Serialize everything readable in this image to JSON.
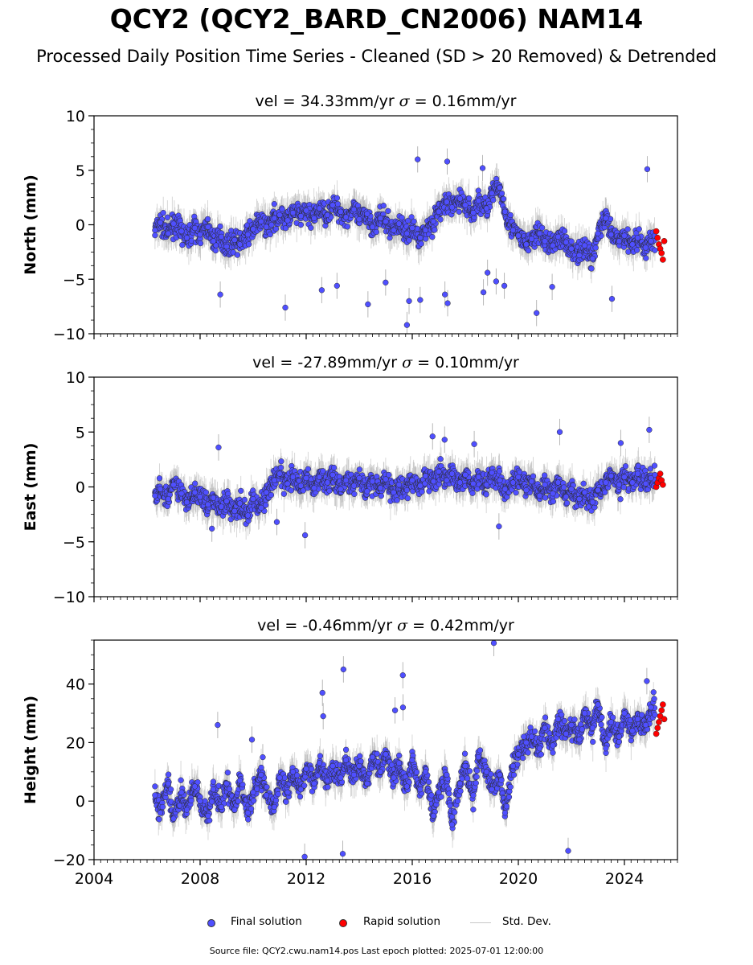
{
  "header": {
    "title": "QCY2 (QCY2_BARD_CN2006) NAM14",
    "subtitle": "Processed Daily Position Time Series - Cleaned (SD > 20 Removed) & Detrended"
  },
  "footer": {
    "text": "Source file: QCY2.cwu.nam14.pos  Last epoch plotted: 2025-07-01 12:00:00"
  },
  "legend": {
    "final_label": "Final solution",
    "rapid_label": "Rapid solution",
    "std_label": "Std. Dev."
  },
  "colors": {
    "final": "#4f4fff",
    "rapid": "#ff0000",
    "std": "#b0b0b0",
    "edge": "#2a2a2a"
  },
  "chart_data": [
    {
      "type": "scatter",
      "title_vel": "vel = 34.33mm/yr",
      "title_sigma": "= 0.16mm/yr",
      "ylabel": "North (mm)",
      "xlim": [
        2004,
        2026
      ],
      "ylim": [
        -10,
        10
      ],
      "yticks": [
        -10,
        -5,
        0,
        5,
        10
      ],
      "xticks": [
        2004,
        2008,
        2012,
        2016,
        2020,
        2024
      ],
      "show_xticklabels": false,
      "series": [
        {
          "name": "Final solution",
          "x": [
            2006.3,
            2006.5,
            2006.8,
            2007.0,
            2007.3,
            2007.5,
            2007.8,
            2008.0,
            2008.3,
            2008.5,
            2008.8,
            2009.0,
            2009.3,
            2009.5,
            2009.8,
            2010.0,
            2010.3,
            2010.5,
            2010.8,
            2011.0,
            2011.3,
            2011.5,
            2011.8,
            2012.0,
            2012.3,
            2012.5,
            2012.8,
            2013.0,
            2013.3,
            2013.5,
            2013.8,
            2014.0,
            2014.3,
            2014.5,
            2014.8,
            2015.0,
            2015.3,
            2015.5,
            2015.8,
            2016.0,
            2016.3,
            2016.5,
            2016.8,
            2017.0,
            2017.3,
            2017.5,
            2017.8,
            2018.0,
            2018.3,
            2018.5,
            2018.8,
            2019.0,
            2019.3,
            2019.5,
            2019.8,
            2020.0,
            2020.3,
            2020.5,
            2020.8,
            2021.0,
            2021.3,
            2021.5,
            2021.8,
            2022.0,
            2022.3,
            2022.5,
            2022.8,
            2023.0,
            2023.3,
            2023.5,
            2023.8,
            2024.0,
            2024.3,
            2024.5,
            2024.8,
            2025.0
          ],
          "y": [
            -0.5,
            0.2,
            -0.8,
            0.1,
            -0.6,
            -1.2,
            -0.3,
            -0.9,
            -0.2,
            -1.5,
            -1.1,
            -2.0,
            -1.4,
            -1.8,
            -0.9,
            -0.4,
            0.3,
            -0.2,
            0.6,
            0.9,
            0.4,
            1.1,
            0.8,
            1.3,
            0.6,
            1.5,
            0.9,
            1.8,
            1.2,
            0.7,
            1.4,
            0.5,
            1.0,
            -0.2,
            0.6,
            0.3,
            -0.5,
            0.1,
            -0.8,
            -0.3,
            -1.2,
            -0.5,
            0.3,
            1.2,
            2.1,
            1.6,
            2.4,
            1.8,
            1.1,
            2.2,
            1.5,
            2.9,
            3.4,
            1.2,
            -0.5,
            -1.0,
            -1.8,
            -1.3,
            -0.8,
            -1.5,
            -1.9,
            -1.1,
            -1.6,
            -2.2,
            -2.8,
            -1.9,
            -3.1,
            -0.8,
            0.6,
            -0.9,
            -1.5,
            -1.0,
            -1.8,
            -1.2,
            -2.1,
            -1.5
          ]
        },
        {
          "name": "Rapid solution",
          "x": [
            2025.2,
            2025.25,
            2025.3,
            2025.35,
            2025.4,
            2025.45,
            2025.5
          ],
          "y": [
            -0.6,
            -1.2,
            -1.8,
            -2.2,
            -2.6,
            -3.2,
            -1.5
          ]
        }
      ],
      "outliers_y": [
        -6.8,
        -7.2,
        -8.1,
        -7.3,
        -6.2,
        -5.2,
        -4.4,
        -7.6,
        -9.2,
        -5.6,
        -6.0,
        -6.4,
        -7.0,
        -6.4,
        -5.3,
        -6.9,
        -5.7,
        -5.6,
        6.0,
        5.8,
        5.2,
        5.1
      ]
    },
    {
      "type": "scatter",
      "title_vel": "vel = -27.89mm/yr",
      "title_sigma": "= 0.10mm/yr",
      "ylabel": "East (mm)",
      "xlim": [
        2004,
        2026
      ],
      "ylim": [
        -10,
        10
      ],
      "yticks": [
        -10,
        -5,
        0,
        5,
        10
      ],
      "xticks": [
        2004,
        2008,
        2012,
        2016,
        2020,
        2024
      ],
      "show_xticklabels": false,
      "series": [
        {
          "name": "Final solution",
          "x": [
            2006.3,
            2006.5,
            2006.8,
            2007.0,
            2007.3,
            2007.5,
            2007.8,
            2008.0,
            2008.3,
            2008.5,
            2008.8,
            2009.0,
            2009.3,
            2009.5,
            2009.8,
            2010.0,
            2010.3,
            2010.5,
            2010.8,
            2011.0,
            2011.3,
            2011.5,
            2011.8,
            2012.0,
            2012.3,
            2012.5,
            2012.8,
            2013.0,
            2013.3,
            2013.5,
            2013.8,
            2014.0,
            2014.3,
            2014.5,
            2014.8,
            2015.0,
            2015.3,
            2015.5,
            2015.8,
            2016.0,
            2016.3,
            2016.5,
            2016.8,
            2017.0,
            2017.3,
            2017.5,
            2017.8,
            2018.0,
            2018.3,
            2018.5,
            2018.8,
            2019.0,
            2019.3,
            2019.5,
            2019.8,
            2020.0,
            2020.3,
            2020.5,
            2020.8,
            2021.0,
            2021.3,
            2021.5,
            2021.8,
            2022.0,
            2022.3,
            2022.5,
            2022.8,
            2023.0,
            2023.3,
            2023.5,
            2023.8,
            2024.0,
            2024.3,
            2024.5,
            2024.8,
            2025.0
          ],
          "y": [
            -0.8,
            -0.2,
            -1.1,
            0.2,
            -0.6,
            -1.4,
            -0.5,
            -0.9,
            -1.6,
            -1.0,
            -1.8,
            -1.3,
            -2.2,
            -1.5,
            -2.6,
            -1.1,
            -1.9,
            -0.5,
            0.6,
            1.2,
            0.3,
            0.9,
            0.1,
            0.8,
            -0.1,
            0.9,
            0.4,
            1.1,
            -0.2,
            0.6,
            0.1,
            0.8,
            -0.4,
            0.5,
            -0.1,
            0.7,
            -0.5,
            0.2,
            -0.3,
            0.6,
            0.1,
            1.0,
            0.5,
            1.4,
            0.6,
            1.2,
            0.4,
            1.1,
            0.3,
            0.9,
            0.2,
            1.3,
            0.6,
            -0.2,
            0.4,
            0.9,
            -0.3,
            0.5,
            -0.8,
            0.2,
            -0.6,
            0.4,
            -0.9,
            -0.2,
            -1.1,
            -0.5,
            -1.4,
            -0.3,
            0.4,
            1.0,
            0.2,
            0.9,
            0.4,
            1.2,
            0.3,
            0.8
          ]
        },
        {
          "name": "Rapid solution",
          "x": [
            2025.2,
            2025.25,
            2025.3,
            2025.35,
            2025.4,
            2025.45
          ],
          "y": [
            0.0,
            0.4,
            0.8,
            1.2,
            0.6,
            0.2
          ]
        }
      ],
      "outliers_y": [
        3.9,
        3.6,
        4.3,
        5.2,
        5.0,
        4.6,
        4.0,
        -3.8,
        -4.4,
        -3.6,
        -3.2
      ]
    },
    {
      "type": "scatter",
      "title_vel": "vel = -0.46mm/yr",
      "title_sigma": "= 0.42mm/yr",
      "ylabel": "Height (mm)",
      "xlim": [
        2004,
        2026
      ],
      "ylim": [
        -20,
        55
      ],
      "yticks": [
        -20,
        0,
        20,
        40
      ],
      "xticks": [
        2004,
        2008,
        2012,
        2016,
        2020,
        2024
      ],
      "show_xticklabels": true,
      "series": [
        {
          "name": "Final solution",
          "x": [
            2006.3,
            2006.5,
            2006.8,
            2007.0,
            2007.3,
            2007.5,
            2007.8,
            2008.0,
            2008.3,
            2008.5,
            2008.8,
            2009.0,
            2009.3,
            2009.5,
            2009.8,
            2010.0,
            2010.3,
            2010.5,
            2010.8,
            2011.0,
            2011.3,
            2011.5,
            2011.8,
            2012.0,
            2012.3,
            2012.5,
            2012.8,
            2013.0,
            2013.3,
            2013.5,
            2013.8,
            2014.0,
            2014.3,
            2014.5,
            2014.8,
            2015.0,
            2015.3,
            2015.5,
            2015.8,
            2016.0,
            2016.3,
            2016.5,
            2016.8,
            2017.0,
            2017.3,
            2017.5,
            2017.8,
            2018.0,
            2018.3,
            2018.5,
            2018.8,
            2019.0,
            2019.3,
            2019.5,
            2019.8,
            2020.0,
            2020.3,
            2020.5,
            2020.8,
            2021.0,
            2021.3,
            2021.5,
            2021.8,
            2022.0,
            2022.3,
            2022.5,
            2022.8,
            2023.0,
            2023.3,
            2023.5,
            2023.8,
            2024.0,
            2024.3,
            2024.5,
            2024.8,
            2025.0
          ],
          "y": [
            2,
            -4,
            6,
            -6,
            3,
            -3,
            5,
            0,
            -5,
            4,
            -2,
            6,
            -3,
            7,
            -4,
            3,
            9,
            2,
            -2,
            8,
            3,
            10,
            4,
            11,
            6,
            13,
            7,
            12,
            8,
            14,
            9,
            12,
            6,
            15,
            10,
            16,
            8,
            13,
            5,
            14,
            4,
            10,
            -5,
            3,
            9,
            -8,
            6,
            12,
            2,
            15,
            10,
            4,
            9,
            -4,
            12,
            16,
            20,
            22,
            18,
            25,
            19,
            28,
            23,
            26,
            21,
            30,
            25,
            33,
            18,
            27,
            22,
            30,
            24,
            28,
            26,
            32
          ]
        },
        {
          "name": "Rapid solution",
          "x": [
            2025.2,
            2025.25,
            2025.3,
            2025.35,
            2025.4,
            2025.45,
            2025.5
          ],
          "y": [
            23,
            25,
            27,
            29,
            31,
            33,
            28
          ]
        }
      ],
      "outliers_y": [
        -19,
        -18,
        16,
        15,
        21,
        22,
        26,
        29,
        32,
        31,
        -17,
        37,
        41,
        43,
        45,
        54
      ]
    }
  ]
}
